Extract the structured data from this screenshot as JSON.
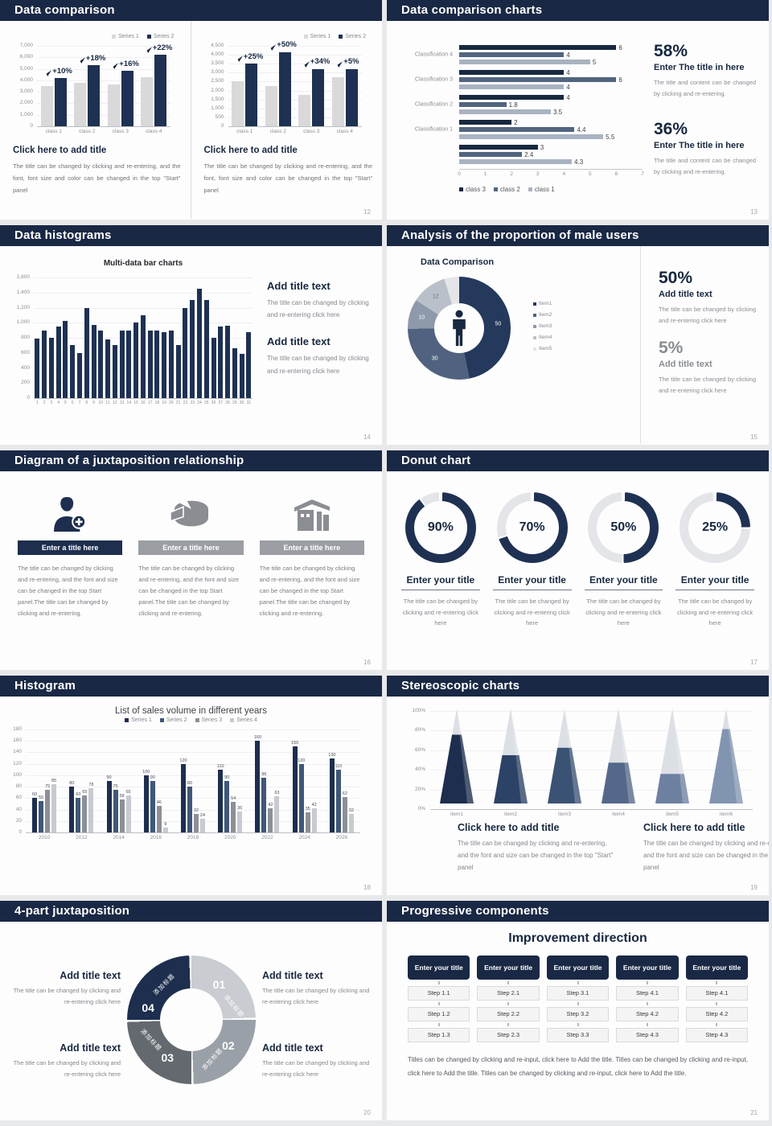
{
  "colors": {
    "header_bg": "#192844",
    "navy": "#1e3152",
    "dark_navy": "#17283f",
    "steel": "#51657f",
    "gray_blue": "#a9b3c1",
    "light_bar": "#d9d9d9",
    "muted_text": "#85888d",
    "page_num": "#a5a8ad"
  },
  "slides": [
    {
      "key": "data-comparison",
      "title": "Data comparison",
      "page": "12",
      "blocks": [
        {
          "legend": [
            "Series 1",
            "Series 2"
          ],
          "chart_data": {
            "type": "bar",
            "categories": [
              "class 1",
              "class 2",
              "class 3",
              "class 4"
            ],
            "series": [
              {
                "name": "Series 1",
                "color": "#d9d9d9",
                "values": [
                  3500,
                  3800,
                  3650,
                  4300
                ]
              },
              {
                "name": "Series 2",
                "color": "#1e3152",
                "values": [
                  4200,
                  5300,
                  4800,
                  6200
                ]
              }
            ],
            "growth_labels": [
              "+10%",
              "+18%",
              "+16%",
              "+22%"
            ],
            "ylim": [
              0,
              7000
            ],
            "yticks": [
              "7,000",
              "6,000",
              "5,000",
              "4,000",
              "3,000",
              "2,000",
              "1,000",
              "0"
            ]
          },
          "heading": "Click here to add title",
          "body": "The title can be changed by clicking and re-entering, and the font, font size and color can be changed in the top \"Start\" panel"
        },
        {
          "legend": [
            "Series 1",
            "Series 2"
          ],
          "chart_data": {
            "type": "bar",
            "categories": [
              "class 1",
              "class 2",
              "class 3",
              "class 4"
            ],
            "series": [
              {
                "name": "Series 1",
                "color": "#d9d9d9",
                "values": [
                  2500,
                  2250,
                  1750,
                  2750
                ]
              },
              {
                "name": "Series 2",
                "color": "#1e3152",
                "values": [
                  3500,
                  4150,
                  3200,
                  3200
                ]
              }
            ],
            "growth_labels": [
              "+25%",
              "+50%",
              "+34%",
              "+5%"
            ],
            "ylim": [
              0,
              4500
            ],
            "yticks": [
              "4,500",
              "4,000",
              "3,500",
              "3,000",
              "2,500",
              "2,000",
              "1,500",
              "1,000",
              "500",
              "0"
            ]
          },
          "heading": "Click here to add title",
          "body": "The title can be changed by clicking and re-entering, and the font, font size and color can be changed in the top \"Start\" panel"
        }
      ]
    },
    {
      "key": "data-comparison-charts",
      "title": "Data comparison charts",
      "page": "13",
      "chart_data": {
        "type": "bar",
        "orientation": "horizontal",
        "legend": [
          "class 3",
          "class 2",
          "class 1"
        ],
        "series_colors": [
          "#17283f",
          "#51657f",
          "#a9b3c1"
        ],
        "groups": [
          {
            "label": "Classification 4",
            "values": [
              6,
              4,
              5
            ]
          },
          {
            "label": "Classification 3",
            "values": [
              4,
              6,
              4
            ]
          },
          {
            "label": "Classification 2",
            "values": [
              4,
              1.8,
              3.5
            ]
          },
          {
            "label": "Classification 1",
            "values": [
              2,
              4.4,
              5.5
            ]
          },
          {
            "label": "",
            "values": [
              3,
              2.4,
              4.3
            ]
          }
        ],
        "xlim": [
          0,
          7
        ],
        "xticks": [
          "0",
          "1",
          "2",
          "3",
          "4",
          "5",
          "6",
          "7"
        ]
      },
      "stats": [
        {
          "value": "58%",
          "heading": "Enter The title in here",
          "body": "The title and content can be changed by clicking and re-entering.",
          "muted": false
        },
        {
          "value": "36%",
          "heading": "Enter The title in here",
          "body": "The title and content can be changed by clicking and re-entering.",
          "muted": false
        }
      ]
    },
    {
      "key": "data-histograms",
      "title": "Data histograms",
      "page": "14",
      "chart_data": {
        "type": "bar",
        "title": "Multi-data bar charts",
        "bar_color": "#1e3152",
        "categories": [
          "1",
          "2",
          "3",
          "4",
          "5",
          "6",
          "7",
          "8",
          "9",
          "10",
          "11",
          "12",
          "13",
          "14",
          "15",
          "16",
          "17",
          "18",
          "19",
          "20",
          "21",
          "22",
          "23",
          "24",
          "25",
          "26",
          "27",
          "28",
          "29",
          "30",
          "31"
        ],
        "values": [
          790,
          900,
          800,
          950,
          1020,
          700,
          600,
          1200,
          975,
          900,
          780,
          700,
          900,
          900,
          1000,
          1100,
          900,
          900,
          880,
          900,
          700,
          1200,
          1300,
          1450,
          1300,
          800,
          950,
          960,
          660,
          590,
          870
        ],
        "ylim": [
          0,
          1600
        ],
        "yticks": [
          "1,600",
          "1,400",
          "1,200",
          "1,000",
          "800",
          "600",
          "400",
          "200",
          "0"
        ]
      },
      "blocks": [
        {
          "heading": "Add title text",
          "body": "The title can be changed by clicking and re-entering click here"
        },
        {
          "heading": "Add title text",
          "body": "The title can be changed by clicking and re-entering click here"
        }
      ]
    },
    {
      "key": "male-users-proportion",
      "title": "Analysis of the proportion of male users",
      "page": "15",
      "chart_data": {
        "type": "pie",
        "title": "Data Comparison",
        "items": [
          {
            "label": "Item1",
            "value": 50,
            "color": "#24395c",
            "data_label": "50"
          },
          {
            "label": "Item2",
            "value": 30,
            "color": "#50627f",
            "data_label": "30"
          },
          {
            "label": "Item3",
            "value": 10,
            "color": "#8e99a9",
            "data_label": "10"
          },
          {
            "label": "Item4",
            "value": 12,
            "color": "#b9c0c9",
            "data_label": "12"
          },
          {
            "label": "Item5",
            "value": 5,
            "color": "#e3e5e9",
            "data_label": ""
          }
        ]
      },
      "stats": [
        {
          "value": "50%",
          "heading": "Add title text",
          "body": "The title can be changed by clicking and re-entering click here",
          "muted": false
        },
        {
          "value": "5%",
          "heading": "Add title text",
          "body": "The title can be changed by clicking and re-entering click here",
          "muted": true
        }
      ]
    },
    {
      "key": "juxtaposition-relationship",
      "title": "Diagram of a juxtaposition relationship",
      "page": "16",
      "columns": [
        {
          "icon": "nurse-add-icon",
          "bar_color": "#1d2e4e",
          "title": "Enter a title here",
          "body": "The title can be changed by clicking and re-entering, and the font and size can be changed in the top Start panel.The title can be changed by clicking and re-entering."
        },
        {
          "icon": "pie-3d-icon",
          "bar_color": "#9b9ea3",
          "title": "Enter a title here",
          "body": "The title can be changed by clicking and re-entering, and the font and size can be changed in the top Start panel.The title can be changed by clicking and re-entering."
        },
        {
          "icon": "building-icon",
          "bar_color": "#9b9ea3",
          "title": "Enter a title here",
          "body": "The title can be changed by clicking and re-entering, and the font and size can be changed in the top Start panel.The title can be changed by clicking and re-entering."
        }
      ]
    },
    {
      "key": "donut-chart",
      "title": "Donut chart",
      "page": "17",
      "arc_color": "#1e3152",
      "track_color": "#e3e5e9",
      "rings": [
        {
          "pct": 90,
          "label": "90%",
          "title": "Enter your title",
          "body": "The title can be changed by clicking and re-entering click here"
        },
        {
          "pct": 70,
          "label": "70%",
          "title": "Enter your title",
          "body": "The title can be changed by clicking and re-entering click here"
        },
        {
          "pct": 50,
          "label": "50%",
          "title": "Enter your title",
          "body": "The title can be changed by clicking and re-entering click here"
        },
        {
          "pct": 25,
          "label": "25%",
          "title": "Enter your title",
          "body": "The title can be changed by clicking and re-entering click here"
        }
      ]
    },
    {
      "key": "histogram",
      "title": "Histogram",
      "page": "18",
      "chart_data": {
        "type": "bar",
        "title": "List of sales volume in different years",
        "legend": [
          "Series 1",
          "Series 2",
          "Series 3",
          "Series 4"
        ],
        "categories": [
          "2010",
          "2012",
          "2014",
          "2016",
          "2018",
          "2020",
          "2022",
          "2024",
          "2026"
        ],
        "series": [
          {
            "name": "Series 1",
            "color": "#1d2e4e",
            "values": [
              60,
              80,
              90,
              100,
              120,
              110,
              160,
              150,
              130
            ]
          },
          {
            "name": "Series 2",
            "color": "#3f5877",
            "values": [
              55,
              60,
              75,
              90,
              80,
              90,
              96,
              120,
              110
            ]
          },
          {
            "name": "Series 3",
            "color": "#8c9096",
            "values": [
              75,
              65,
              58,
              46,
              32,
              54,
              42,
              35,
              62
            ]
          },
          {
            "name": "Series 4",
            "color": "#c7cad0",
            "values": [
              85,
              78,
              65,
              9,
              24,
              36,
              63,
              42,
              32
            ]
          }
        ],
        "ylim": [
          0,
          180
        ],
        "yticks": [
          "180",
          "160",
          "140",
          "120",
          "100",
          "80",
          "60",
          "40",
          "20",
          "0"
        ]
      }
    },
    {
      "key": "stereoscopic-charts",
      "title": "Stereoscopic charts",
      "page": "19",
      "chart_data": {
        "type": "cone",
        "track_color": "#dcdfe4",
        "yticks": [
          "100%",
          "80%",
          "60%",
          "40%",
          "20%",
          "0%"
        ],
        "items": [
          {
            "label": "item1",
            "pct": 72,
            "color": "#1d2e4e"
          },
          {
            "label": "item2",
            "pct": 50,
            "color": "#2c4266"
          },
          {
            "label": "item3",
            "pct": 58,
            "color": "#3a5274"
          },
          {
            "label": "item4",
            "pct": 42,
            "color": "#54688a"
          },
          {
            "label": "item5",
            "pct": 30,
            "color": "#6e80a0"
          },
          {
            "label": "item6",
            "pct": 78,
            "color": "#8195b0"
          }
        ]
      },
      "blocks": [
        {
          "heading": "Click here to add title",
          "body": "The title can be changed by clicking and re-entering, and the font and size can be changed in the top \"Start\" panel"
        },
        {
          "heading": "Click here to add title",
          "body": "The title can be changed by clicking and re-entering, and the font and size can be changed in the top \"Start\" panel"
        }
      ]
    },
    {
      "key": "four-part-juxtaposition",
      "title": "4-part juxtaposition",
      "page": "20",
      "segments": [
        {
          "num": "01",
          "label": "添加标题",
          "color": "#c9ccd1"
        },
        {
          "num": "02",
          "label": "添加标题",
          "color": "#9aa0a7"
        },
        {
          "num": "03",
          "label": "添加标题",
          "color": "#64696f"
        },
        {
          "num": "04",
          "label": "添加标题",
          "color": "#1d2e4e"
        }
      ],
      "blocks": [
        {
          "heading": "Add title text",
          "body": "The title can be changed by clicking and re-entering click here"
        },
        {
          "heading": "Add title text",
          "body": "The title can be changed by clicking and re-entering click here"
        },
        {
          "heading": "Add title text",
          "body": "The title can be changed by clicking and re-entering click here"
        },
        {
          "heading": "Add title text",
          "body": "The title can be changed by clicking and re-entering click here"
        }
      ]
    },
    {
      "key": "progressive-components",
      "title": "Progressive components",
      "page": "21",
      "heading": "Improvement direction",
      "columns": [
        {
          "header": "Enter your title",
          "steps": [
            "Step 1.1",
            "Step 1.2",
            "Step 1.3"
          ]
        },
        {
          "header": "Enter your title",
          "steps": [
            "Step 2.1",
            "Step 2.2",
            "Step 2.3"
          ]
        },
        {
          "header": "Enter your title",
          "steps": [
            "Step 3.1",
            "Step 3.2",
            "Step 3.3"
          ]
        },
        {
          "header": "Enter your title",
          "steps": [
            "Step 4.1",
            "Step 4.2",
            "Step 4.3"
          ]
        },
        {
          "header": "Enter your title",
          "steps": [
            "Step 4.1",
            "Step 4.2",
            "Step 4.3"
          ]
        }
      ],
      "footer": "Titles can be changed by clicking and re-input, click here to Add the title. Titles can be changed by clicking and re-input, click here to Add the title. Titles can be changed by clicking and re-input, click here to Add the title."
    }
  ]
}
